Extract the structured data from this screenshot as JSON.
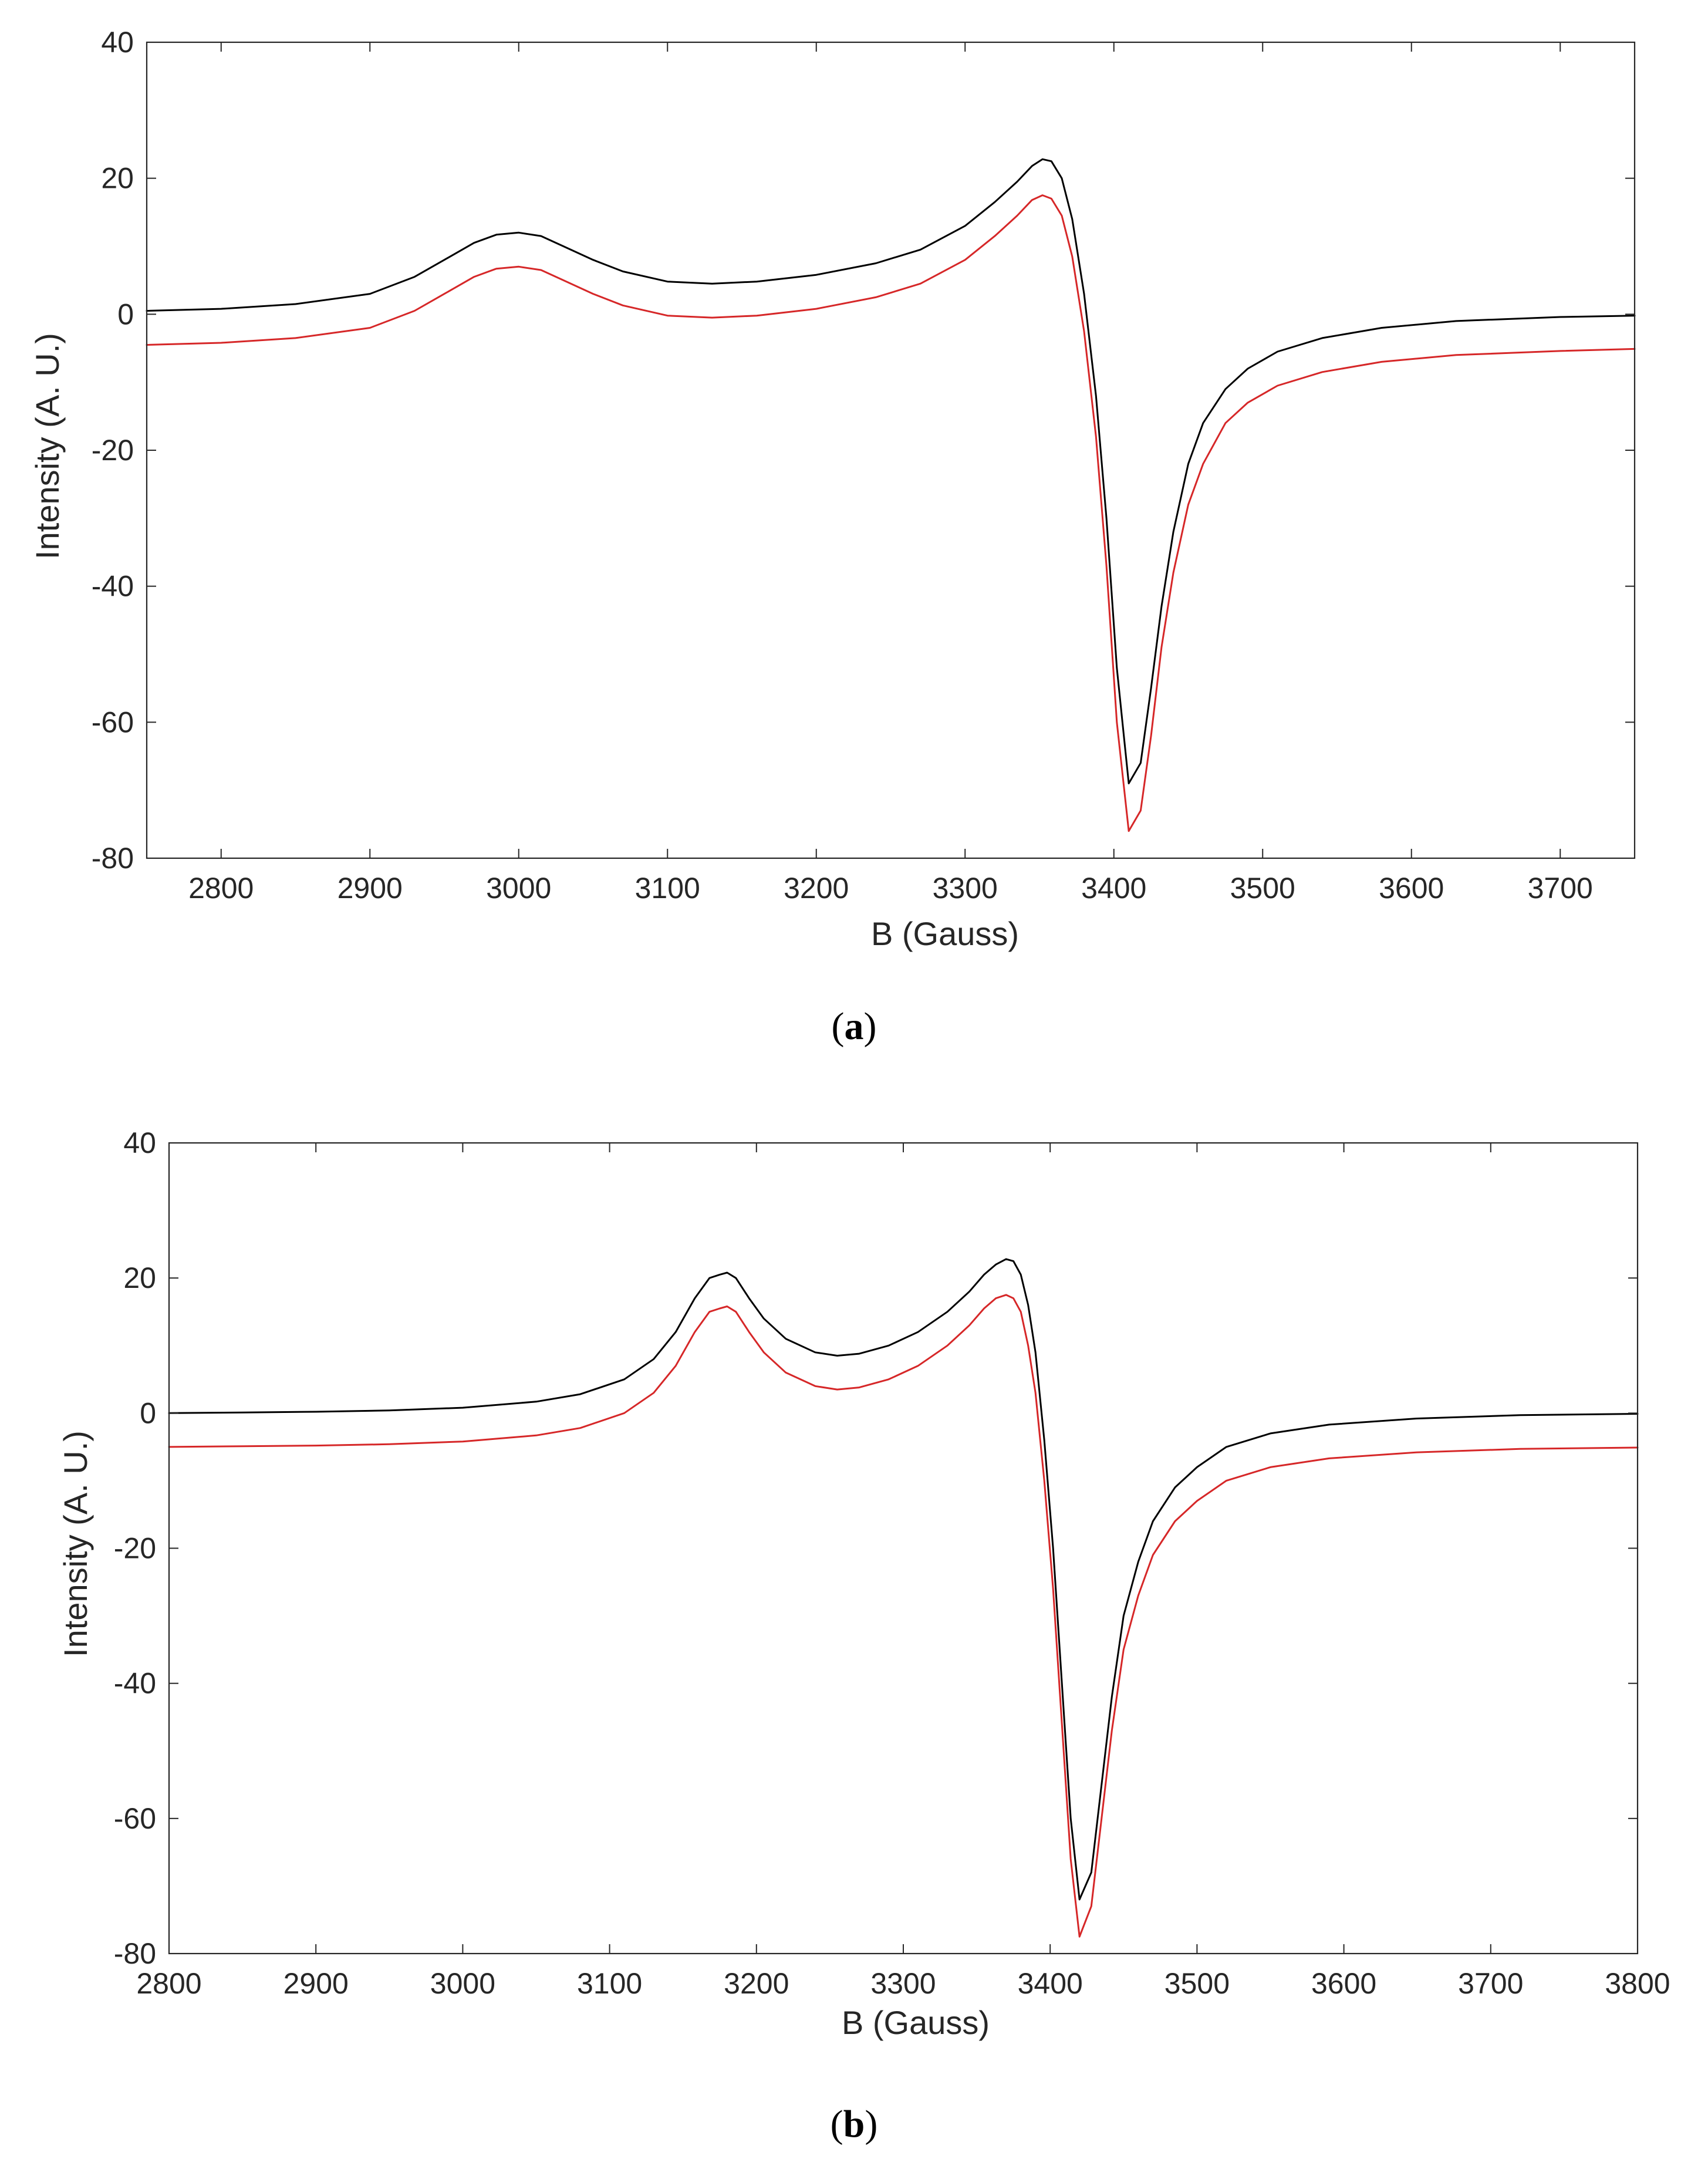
{
  "chart_data": [
    {
      "type": "line",
      "caption_letter": "a",
      "xlabel": "B (Gauss)",
      "ylabel": "Intensity (A. U.)",
      "xlim": [
        2750,
        3750
      ],
      "ylim": [
        -80,
        40
      ],
      "xticks": [
        2800,
        2900,
        3000,
        3100,
        3200,
        3300,
        3400,
        3500,
        3600,
        3700
      ],
      "yticks": [
        -80,
        -60,
        -40,
        -20,
        0,
        20,
        40
      ],
      "grid": false,
      "series": [
        {
          "color": "#000000",
          "x": [
            2750,
            2800,
            2850,
            2900,
            2930,
            2950,
            2970,
            2985,
            3000,
            3015,
            3030,
            3050,
            3070,
            3100,
            3130,
            3160,
            3200,
            3240,
            3270,
            3300,
            3320,
            3335,
            3345,
            3352,
            3358,
            3365,
            3372,
            3380,
            3388,
            3395,
            3402,
            3410,
            3418,
            3425,
            3432,
            3440,
            3450,
            3460,
            3475,
            3490,
            3510,
            3540,
            3580,
            3630,
            3700,
            3750
          ],
          "y": [
            0.5,
            0.8,
            1.5,
            3,
            5.5,
            8,
            10.5,
            11.7,
            12,
            11.5,
            10,
            8,
            6.3,
            4.8,
            4.5,
            4.8,
            5.8,
            7.5,
            9.5,
            13,
            16.5,
            19.5,
            21.8,
            22.8,
            22.5,
            20,
            14,
            3,
            -12,
            -30,
            -52,
            -69,
            -66,
            -55,
            -43,
            -32,
            -22,
            -16,
            -11,
            -8,
            -5.5,
            -3.5,
            -2,
            -1,
            -0.4,
            -0.2
          ]
        },
        {
          "color": "#d62728",
          "x": [
            2750,
            2800,
            2850,
            2900,
            2930,
            2950,
            2970,
            2985,
            3000,
            3015,
            3030,
            3050,
            3070,
            3100,
            3130,
            3160,
            3200,
            3240,
            3270,
            3300,
            3320,
            3335,
            3345,
            3352,
            3358,
            3365,
            3372,
            3380,
            3388,
            3395,
            3402,
            3410,
            3418,
            3425,
            3432,
            3440,
            3450,
            3460,
            3475,
            3490,
            3510,
            3540,
            3580,
            3630,
            3700,
            3750
          ],
          "y": [
            -4.5,
            -4.2,
            -3.5,
            -2,
            0.5,
            3,
            5.5,
            6.7,
            7,
            6.5,
            5,
            3,
            1.3,
            -0.2,
            -0.5,
            -0.2,
            0.8,
            2.5,
            4.5,
            8,
            11.5,
            14.5,
            16.8,
            17.5,
            17,
            14.5,
            8.5,
            -2.5,
            -18,
            -37,
            -60,
            -76,
            -73,
            -62,
            -49,
            -38,
            -28,
            -22,
            -16,
            -13,
            -10.5,
            -8.5,
            -7,
            -6,
            -5.4,
            -5.1
          ]
        }
      ]
    },
    {
      "type": "line",
      "caption_letter": "b",
      "xlabel": "B (Gauss)",
      "ylabel": "Intensity (A. U.)",
      "xlim": [
        2800,
        3800
      ],
      "ylim": [
        -80,
        40
      ],
      "xticks": [
        2800,
        2900,
        3000,
        3100,
        3200,
        3300,
        3400,
        3500,
        3600,
        3700,
        3800
      ],
      "yticks": [
        -80,
        -60,
        -40,
        -20,
        0,
        20,
        40
      ],
      "grid": false,
      "series": [
        {
          "color": "#000000",
          "x": [
            2800,
            2850,
            2900,
            2950,
            3000,
            3050,
            3080,
            3110,
            3130,
            3145,
            3158,
            3168,
            3175,
            3180,
            3186,
            3195,
            3205,
            3220,
            3240,
            3255,
            3270,
            3290,
            3310,
            3330,
            3345,
            3355,
            3363,
            3370,
            3375,
            3380,
            3385,
            3390,
            3396,
            3402,
            3408,
            3414,
            3420,
            3428,
            3435,
            3442,
            3450,
            3460,
            3470,
            3485,
            3500,
            3520,
            3550,
            3590,
            3650,
            3720,
            3800
          ],
          "y": [
            0,
            0.1,
            0.2,
            0.4,
            0.8,
            1.7,
            2.8,
            5,
            8,
            12,
            17,
            20,
            20.5,
            20.8,
            20,
            17,
            14,
            11,
            9,
            8.5,
            8.8,
            10,
            12,
            15,
            18,
            20.5,
            22,
            22.8,
            22.5,
            20.5,
            16,
            9,
            -4,
            -20,
            -40,
            -60,
            -72,
            -68,
            -55,
            -42,
            -30,
            -22,
            -16,
            -11,
            -8,
            -5,
            -3,
            -1.7,
            -0.8,
            -0.3,
            -0.1
          ]
        },
        {
          "color": "#d62728",
          "x": [
            2800,
            2850,
            2900,
            2950,
            3000,
            3050,
            3080,
            3110,
            3130,
            3145,
            3158,
            3168,
            3175,
            3180,
            3186,
            3195,
            3205,
            3220,
            3240,
            3255,
            3270,
            3290,
            3310,
            3330,
            3345,
            3355,
            3363,
            3370,
            3375,
            3380,
            3385,
            3390,
            3396,
            3402,
            3408,
            3414,
            3420,
            3428,
            3435,
            3442,
            3450,
            3460,
            3470,
            3485,
            3500,
            3520,
            3550,
            3590,
            3650,
            3720,
            3800
          ],
          "y": [
            -5,
            -4.9,
            -4.8,
            -4.6,
            -4.2,
            -3.3,
            -2.2,
            0,
            3,
            7,
            12,
            15,
            15.5,
            15.8,
            15,
            12,
            9,
            6,
            4,
            3.5,
            3.8,
            5,
            7,
            10,
            13,
            15.5,
            17,
            17.5,
            17,
            15,
            10,
            3,
            -10,
            -26,
            -46,
            -66,
            -77.5,
            -73,
            -60,
            -47,
            -35,
            -27,
            -21,
            -16,
            -13,
            -10,
            -8,
            -6.7,
            -5.8,
            -5.3,
            -5.1
          ]
        }
      ]
    }
  ]
}
